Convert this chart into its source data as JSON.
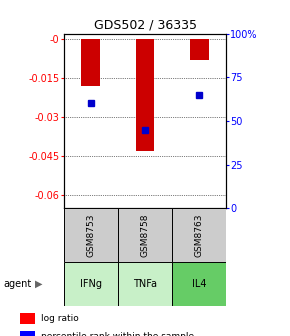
{
  "title": "GDS502 / 36335",
  "samples": [
    "GSM8753",
    "GSM8758",
    "GSM8763"
  ],
  "agents": [
    "IFNg",
    "TNFa",
    "IL4"
  ],
  "log_ratios": [
    -0.018,
    -0.043,
    -0.008
  ],
  "percentiles": [
    60,
    45,
    65
  ],
  "ylim_left": [
    -0.065,
    0.002
  ],
  "yticks_left": [
    0,
    -0.015,
    -0.03,
    -0.045,
    -0.06
  ],
  "ytick_labels_left": [
    "-0",
    "-0.015",
    "-0.03",
    "-0.045",
    "-0.06"
  ],
  "yticks_right_vals": [
    0,
    25,
    50,
    75,
    100
  ],
  "ytick_labels_right": [
    "0",
    "25",
    "50",
    "75",
    "100%"
  ],
  "bar_color": "#cc0000",
  "dot_color": "#0000cc",
  "agent_colors": [
    "#c8f0c8",
    "#c8f0c8",
    "#66cc66"
  ],
  "sample_bg": "#cccccc",
  "bar_width": 0.35
}
